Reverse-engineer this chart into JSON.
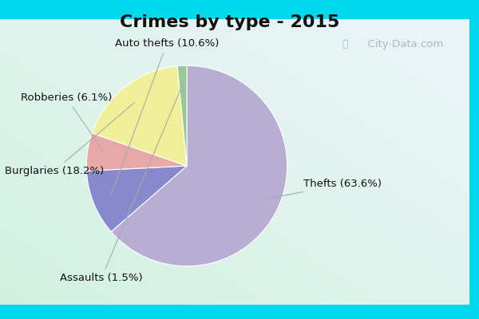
{
  "title": "Crimes by type - 2015",
  "slices": [
    {
      "label": "Thefts (63.6%)",
      "value": 63.6,
      "color": "#b8aed4"
    },
    {
      "label": "Auto thefts (10.6%)",
      "value": 10.6,
      "color": "#8888cc"
    },
    {
      "label": "Robberies (6.1%)",
      "value": 6.1,
      "color": "#e8a8a8"
    },
    {
      "label": "Burglaries (18.2%)",
      "value": 18.2,
      "color": "#f0f098"
    },
    {
      "label": "Assaults (1.5%)",
      "value": 1.5,
      "color": "#98c898"
    }
  ],
  "outer_bg": "#00d8ec",
  "title_fontsize": 16,
  "label_fontsize": 9.5,
  "watermark": "City-Data.com",
  "startangle": 90,
  "counterclock": false
}
